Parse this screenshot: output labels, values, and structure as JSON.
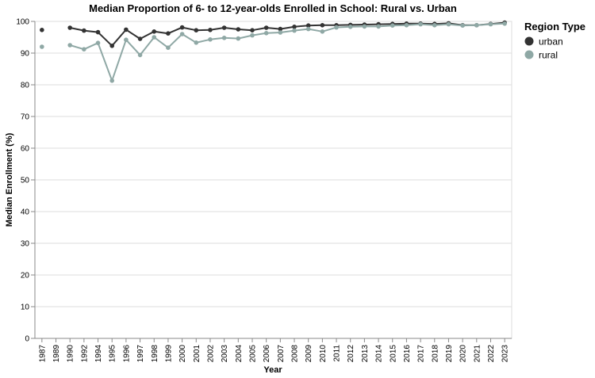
{
  "chart_data": {
    "type": "line",
    "title": "Median Proportion of 6- to 12-year-olds Enrolled in School: Rural vs. Urban",
    "xlabel": "Year",
    "ylabel": "Median Enrollment (%)",
    "ylim": [
      0,
      100
    ],
    "yticks": [
      0,
      10,
      20,
      30,
      40,
      50,
      60,
      70,
      80,
      90,
      100
    ],
    "grid": true,
    "legend": {
      "title": "Region Type",
      "position": "top-right"
    },
    "x": [
      "1987",
      "1989",
      "1990",
      "1992",
      "1994",
      "1995",
      "1996",
      "1997",
      "1998",
      "1999",
      "2000",
      "2001",
      "2002",
      "2003",
      "2004",
      "2005",
      "2006",
      "2007",
      "2008",
      "2009",
      "2010",
      "2011",
      "2012",
      "2013",
      "2014",
      "2015",
      "2016",
      "2017",
      "2018",
      "2019",
      "2020",
      "2021",
      "2022",
      "2023"
    ],
    "series": [
      {
        "name": "urban",
        "color": "#333333",
        "values": [
          97.3,
          null,
          98.0,
          97.1,
          96.6,
          92.3,
          97.4,
          94.5,
          96.8,
          96.2,
          98.1,
          97.2,
          97.3,
          98.0,
          97.5,
          97.2,
          98.0,
          97.6,
          98.3,
          98.7,
          98.8,
          98.8,
          98.9,
          99.0,
          99.1,
          99.2,
          99.3,
          99.3,
          99.2,
          99.4,
          98.8,
          98.8,
          99.2,
          99.6
        ]
      },
      {
        "name": "rural",
        "color": "#8fa8a5",
        "values": [
          92.0,
          null,
          92.5,
          91.2,
          93.2,
          81.3,
          94.2,
          89.4,
          95.0,
          91.7,
          96.0,
          93.3,
          94.3,
          94.8,
          94.6,
          95.6,
          96.3,
          96.5,
          97.1,
          97.6,
          96.8,
          98.1,
          98.3,
          98.4,
          98.4,
          98.7,
          98.8,
          99.1,
          98.8,
          99.1,
          98.7,
          98.8,
          99.1,
          99.3
        ]
      }
    ]
  }
}
